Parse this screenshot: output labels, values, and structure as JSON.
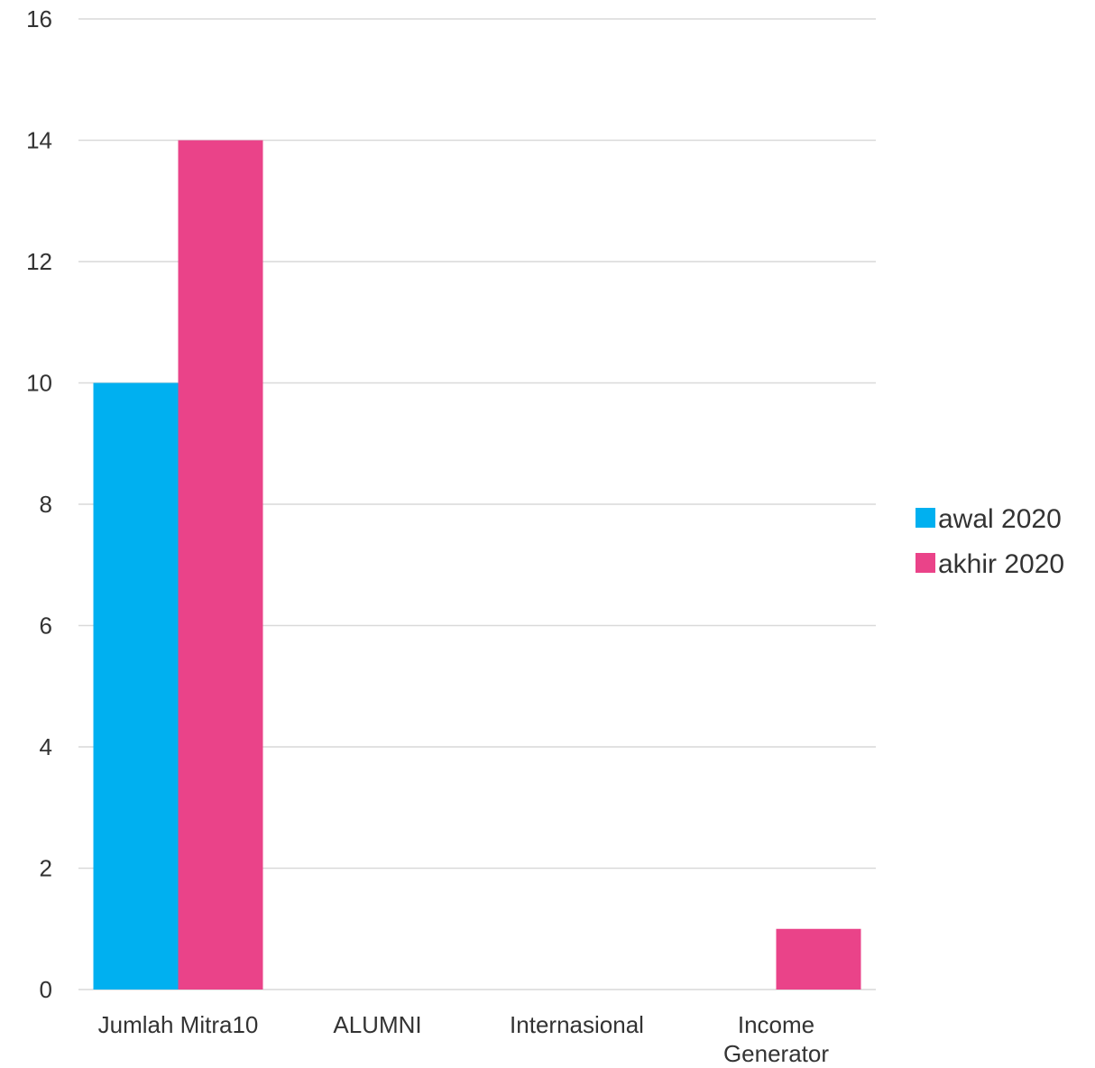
{
  "chart_data": {
    "type": "bar",
    "categories": [
      [
        "Jumlah Mitra10"
      ],
      [
        "ALUMNI"
      ],
      [
        "Internasional"
      ],
      [
        "Income",
        "Generator"
      ]
    ],
    "series": [
      {
        "name": "awal 2020",
        "color": "#00b0f0",
        "values": [
          10,
          0,
          0,
          0
        ]
      },
      {
        "name": "akhir 2020",
        "color": "#ea4389",
        "values": [
          14,
          0,
          0,
          1
        ]
      }
    ],
    "yticks": [
      0,
      2,
      4,
      6,
      8,
      10,
      12,
      14,
      16
    ],
    "ylim": [
      0,
      16
    ],
    "grid": true,
    "legend_position": "right"
  }
}
